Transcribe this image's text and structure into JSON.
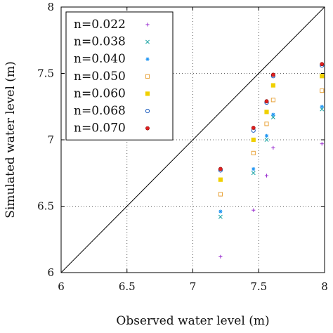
{
  "chart_data": {
    "type": "scatter",
    "xlabel": "Observed water level (m)",
    "ylabel": "Simulated water level (m)",
    "xlim": [
      6,
      8
    ],
    "ylim": [
      6,
      8
    ],
    "xticks": [
      "6",
      "6.5",
      "7",
      "7.5",
      "8"
    ],
    "yticks": [
      "6",
      "6.5",
      "7",
      "7.5",
      "8"
    ],
    "grid": "dotted at 6.5, 7, 7.5",
    "legend_position": "top-left",
    "reference_line": "y = x",
    "x": [
      7.21,
      7.46,
      7.56,
      7.61,
      7.98
    ],
    "series": [
      {
        "name": "n=0.022",
        "marker": "plus",
        "color": "#9b30d0",
        "values": [
          6.12,
          6.47,
          6.73,
          6.94,
          6.97
        ]
      },
      {
        "name": "n=0.038",
        "marker": "x",
        "color": "#1aa3a3",
        "values": [
          6.42,
          6.75,
          7.0,
          7.17,
          7.23
        ]
      },
      {
        "name": "n=0.040",
        "marker": "star",
        "color": "#2196f3",
        "values": [
          6.46,
          6.78,
          7.03,
          7.19,
          7.25
        ]
      },
      {
        "name": "n=0.050",
        "marker": "square-open",
        "color": "#e8a33a",
        "values": [
          6.59,
          6.9,
          7.12,
          7.3,
          7.37
        ]
      },
      {
        "name": "n=0.060",
        "marker": "square-filled",
        "color": "#f0d000",
        "values": [
          6.7,
          7.0,
          7.21,
          7.41,
          7.48
        ]
      },
      {
        "name": "n=0.068",
        "marker": "circle-open",
        "color": "#1f5fbf",
        "values": [
          6.77,
          7.07,
          7.28,
          7.48,
          7.56
        ]
      },
      {
        "name": "n=0.070",
        "marker": "circle-filled",
        "color": "#e02020",
        "values": [
          6.78,
          7.09,
          7.29,
          7.49,
          7.57
        ]
      }
    ]
  }
}
